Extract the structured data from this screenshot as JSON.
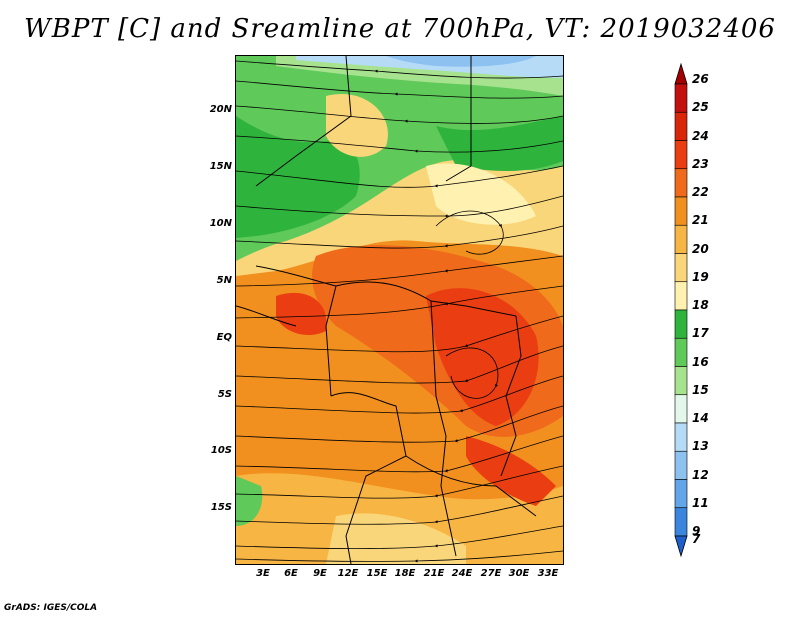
{
  "title": "WBPT [C] and Sreamline at 700hPa, VT: 2019032406",
  "footer": "GrADS: IGES/COLA",
  "map": {
    "lat_labels": [
      "20N",
      "15N",
      "10N",
      "5N",
      "EQ",
      "5S",
      "10S",
      "15S"
    ],
    "lon_labels": [
      "3E",
      "6E",
      "9E",
      "12E",
      "15E",
      "18E",
      "21E",
      "24E",
      "27E",
      "30E",
      "33E"
    ]
  },
  "colorbar": {
    "labels": [
      "26",
      "25",
      "24",
      "23",
      "22",
      "21",
      "20",
      "19",
      "18",
      "17",
      "16",
      "15",
      "14",
      "13",
      "12",
      "11",
      "9",
      "7"
    ],
    "colors": [
      "#a50000",
      "#c40f0f",
      "#d9260a",
      "#ea3d12",
      "#ef6a1a",
      "#f2901f",
      "#f7b544",
      "#fad67a",
      "#fff1b0",
      "#2eb33c",
      "#5fc959",
      "#a7e38f",
      "#e3f7ea",
      "#b5dbf7",
      "#8cc1f0",
      "#62a5e8",
      "#3a86de",
      "#1f5fcc"
    ]
  }
}
